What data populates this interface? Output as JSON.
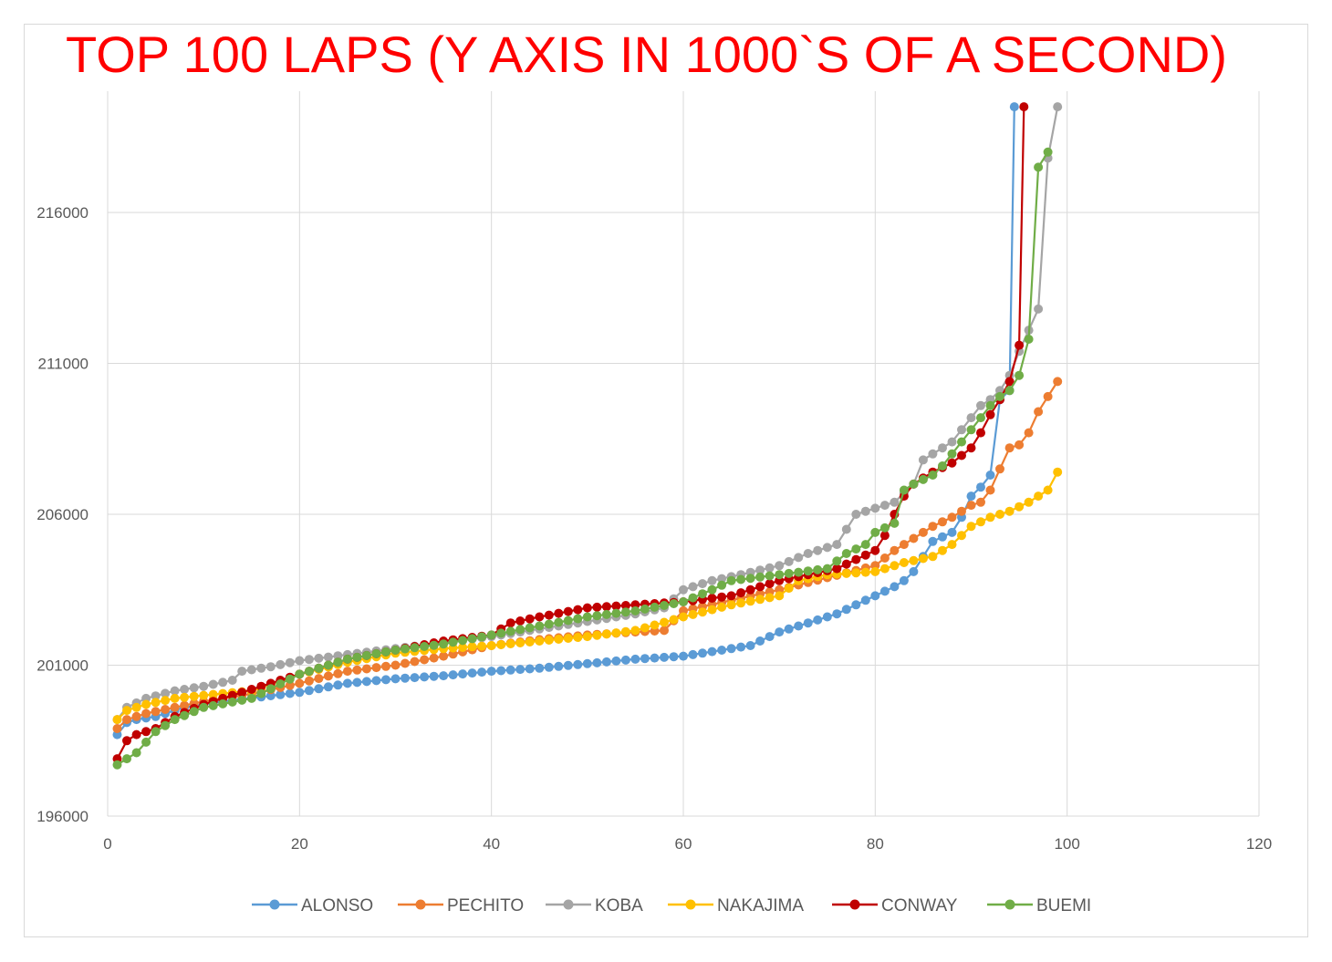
{
  "chart_data": {
    "type": "line",
    "title": "TOP 100 LAPS (Y AXIS IN 1000`S OF A SECOND)",
    "xlabel": "",
    "ylabel": "",
    "xlim": [
      0,
      120
    ],
    "ylim": [
      196000,
      219000
    ],
    "x_ticks": [
      "0",
      "20",
      "40",
      "60",
      "80",
      "100",
      "120"
    ],
    "y_ticks": [
      "196000",
      "201000",
      "206000",
      "211000",
      "216000"
    ],
    "grid": true,
    "legend_position": "bottom",
    "series": [
      {
        "name": "ALONSO",
        "color": "#5b9bd5",
        "anchors": [
          [
            1,
            198700
          ],
          [
            2,
            199100
          ],
          [
            3,
            199200
          ],
          [
            5,
            199300
          ],
          [
            8,
            199600
          ],
          [
            12,
            199800
          ],
          [
            16,
            199950
          ],
          [
            20,
            200100
          ],
          [
            25,
            200400
          ],
          [
            30,
            200550
          ],
          [
            35,
            200650
          ],
          [
            40,
            200800
          ],
          [
            45,
            200900
          ],
          [
            50,
            201050
          ],
          [
            55,
            201200
          ],
          [
            60,
            201300
          ],
          [
            63,
            201450
          ],
          [
            67,
            201650
          ],
          [
            70,
            202100
          ],
          [
            73,
            202400
          ],
          [
            76,
            202700
          ],
          [
            78,
            203000
          ],
          [
            80,
            203300
          ],
          [
            82,
            203600
          ],
          [
            83,
            203800
          ],
          [
            84,
            204100
          ],
          [
            86,
            205100
          ],
          [
            88,
            205400
          ],
          [
            89,
            205900
          ],
          [
            90,
            206600
          ],
          [
            91,
            206900
          ],
          [
            92,
            207300
          ],
          [
            93,
            209800
          ],
          [
            94,
            210100
          ],
          [
            94.5,
            219500
          ]
        ]
      },
      {
        "name": "PECHITO",
        "color": "#ed7d31",
        "anchors": [
          [
            1,
            198900
          ],
          [
            2,
            199200
          ],
          [
            4,
            199400
          ],
          [
            7,
            199600
          ],
          [
            10,
            199800
          ],
          [
            15,
            200050
          ],
          [
            20,
            200400
          ],
          [
            25,
            200800
          ],
          [
            30,
            201000
          ],
          [
            35,
            201300
          ],
          [
            40,
            201650
          ],
          [
            45,
            201850
          ],
          [
            50,
            202000
          ],
          [
            55,
            202100
          ],
          [
            58,
            202150
          ],
          [
            60,
            202800
          ],
          [
            65,
            203150
          ],
          [
            70,
            203500
          ],
          [
            75,
            203900
          ],
          [
            80,
            204300
          ],
          [
            82,
            204800
          ],
          [
            84,
            205200
          ],
          [
            86,
            205600
          ],
          [
            88,
            205900
          ],
          [
            89,
            206100
          ],
          [
            90,
            206300
          ],
          [
            91,
            206400
          ],
          [
            92,
            206800
          ],
          [
            93,
            207500
          ],
          [
            94,
            208200
          ],
          [
            95,
            208300
          ],
          [
            96,
            208700
          ],
          [
            97,
            209400
          ],
          [
            98,
            209900
          ],
          [
            99,
            210400
          ]
        ]
      },
      {
        "name": "KOBA",
        "color": "#a5a5a5",
        "anchors": [
          [
            1,
            199200
          ],
          [
            2,
            199600
          ],
          [
            4,
            199900
          ],
          [
            7,
            200150
          ],
          [
            10,
            200300
          ],
          [
            13,
            200500
          ],
          [
            14,
            200800
          ],
          [
            17,
            200950
          ],
          [
            20,
            201150
          ],
          [
            25,
            201350
          ],
          [
            30,
            201550
          ],
          [
            35,
            201750
          ],
          [
            40,
            201950
          ],
          [
            45,
            202200
          ],
          [
            50,
            202450
          ],
          [
            55,
            202700
          ],
          [
            58,
            202900
          ],
          [
            59,
            203200
          ],
          [
            60,
            203500
          ],
          [
            63,
            203800
          ],
          [
            66,
            204000
          ],
          [
            70,
            204300
          ],
          [
            73,
            204700
          ],
          [
            76,
            205000
          ],
          [
            77,
            205500
          ],
          [
            78,
            206000
          ],
          [
            80,
            206200
          ],
          [
            82,
            206400
          ],
          [
            83,
            206700
          ],
          [
            84,
            207000
          ],
          [
            85,
            207800
          ],
          [
            86,
            208000
          ],
          [
            88,
            208400
          ],
          [
            90,
            209200
          ],
          [
            91,
            209600
          ],
          [
            92,
            209800
          ],
          [
            93,
            210100
          ],
          [
            94,
            210600
          ],
          [
            95,
            211400
          ],
          [
            96,
            212100
          ],
          [
            97,
            212800
          ],
          [
            98,
            217800
          ],
          [
            99,
            219500
          ]
        ]
      },
      {
        "name": "NAKAJIMA",
        "color": "#ffc000",
        "anchors": [
          [
            1,
            199200
          ],
          [
            2,
            199500
          ],
          [
            4,
            199700
          ],
          [
            7,
            199900
          ],
          [
            10,
            200000
          ],
          [
            15,
            200150
          ],
          [
            20,
            200700
          ],
          [
            25,
            201100
          ],
          [
            30,
            201400
          ],
          [
            35,
            201550
          ],
          [
            40,
            201650
          ],
          [
            45,
            201800
          ],
          [
            50,
            201950
          ],
          [
            55,
            202150
          ],
          [
            60,
            202600
          ],
          [
            65,
            203000
          ],
          [
            70,
            203300
          ],
          [
            72,
            203800
          ],
          [
            75,
            204000
          ],
          [
            80,
            204100
          ],
          [
            83,
            204400
          ],
          [
            86,
            204600
          ],
          [
            88,
            205000
          ],
          [
            89,
            205300
          ],
          [
            90,
            205600
          ],
          [
            92,
            205900
          ],
          [
            94,
            206100
          ],
          [
            96,
            206400
          ],
          [
            98,
            206800
          ],
          [
            99,
            207400
          ]
        ]
      },
      {
        "name": "CONWAY",
        "color": "#c00000",
        "anchors": [
          [
            1,
            197900
          ],
          [
            2,
            198500
          ],
          [
            3,
            198700
          ],
          [
            5,
            198900
          ],
          [
            7,
            199300
          ],
          [
            10,
            199700
          ],
          [
            13,
            200000
          ],
          [
            16,
            200300
          ],
          [
            20,
            200700
          ],
          [
            25,
            201200
          ],
          [
            30,
            201500
          ],
          [
            35,
            201800
          ],
          [
            40,
            202000
          ],
          [
            42,
            202400
          ],
          [
            45,
            202600
          ],
          [
            50,
            202900
          ],
          [
            55,
            203000
          ],
          [
            60,
            203100
          ],
          [
            65,
            203300
          ],
          [
            68,
            203600
          ],
          [
            70,
            203800
          ],
          [
            73,
            204000
          ],
          [
            76,
            204200
          ],
          [
            78,
            204500
          ],
          [
            80,
            204800
          ],
          [
            81,
            205300
          ],
          [
            82,
            206000
          ],
          [
            83,
            206600
          ],
          [
            84,
            207000
          ],
          [
            86,
            207400
          ],
          [
            88,
            207700
          ],
          [
            90,
            208200
          ],
          [
            91,
            208700
          ],
          [
            92,
            209300
          ],
          [
            93,
            209800
          ],
          [
            94,
            210400
          ],
          [
            95,
            211600
          ],
          [
            95.5,
            219500
          ]
        ]
      },
      {
        "name": "BUEMI",
        "color": "#70ad47",
        "anchors": [
          [
            1,
            197700
          ],
          [
            2,
            197900
          ],
          [
            3,
            198100
          ],
          [
            5,
            198800
          ],
          [
            7,
            199200
          ],
          [
            10,
            199600
          ],
          [
            15,
            199900
          ],
          [
            20,
            200700
          ],
          [
            25,
            201200
          ],
          [
            30,
            201500
          ],
          [
            35,
            201700
          ],
          [
            40,
            202000
          ],
          [
            45,
            202300
          ],
          [
            50,
            202600
          ],
          [
            55,
            202800
          ],
          [
            60,
            203100
          ],
          [
            63,
            203500
          ],
          [
            65,
            203800
          ],
          [
            70,
            204000
          ],
          [
            75,
            204200
          ],
          [
            77,
            204700
          ],
          [
            79,
            205000
          ],
          [
            80,
            205400
          ],
          [
            82,
            205700
          ],
          [
            83,
            206800
          ],
          [
            84,
            207000
          ],
          [
            86,
            207300
          ],
          [
            87,
            207600
          ],
          [
            88,
            208000
          ],
          [
            89,
            208400
          ],
          [
            90,
            208800
          ],
          [
            91,
            209200
          ],
          [
            92,
            209600
          ],
          [
            93,
            209900
          ],
          [
            94,
            210100
          ],
          [
            95,
            210600
          ],
          [
            96,
            211800
          ],
          [
            97,
            217500
          ],
          [
            98,
            218000
          ]
        ]
      }
    ]
  }
}
